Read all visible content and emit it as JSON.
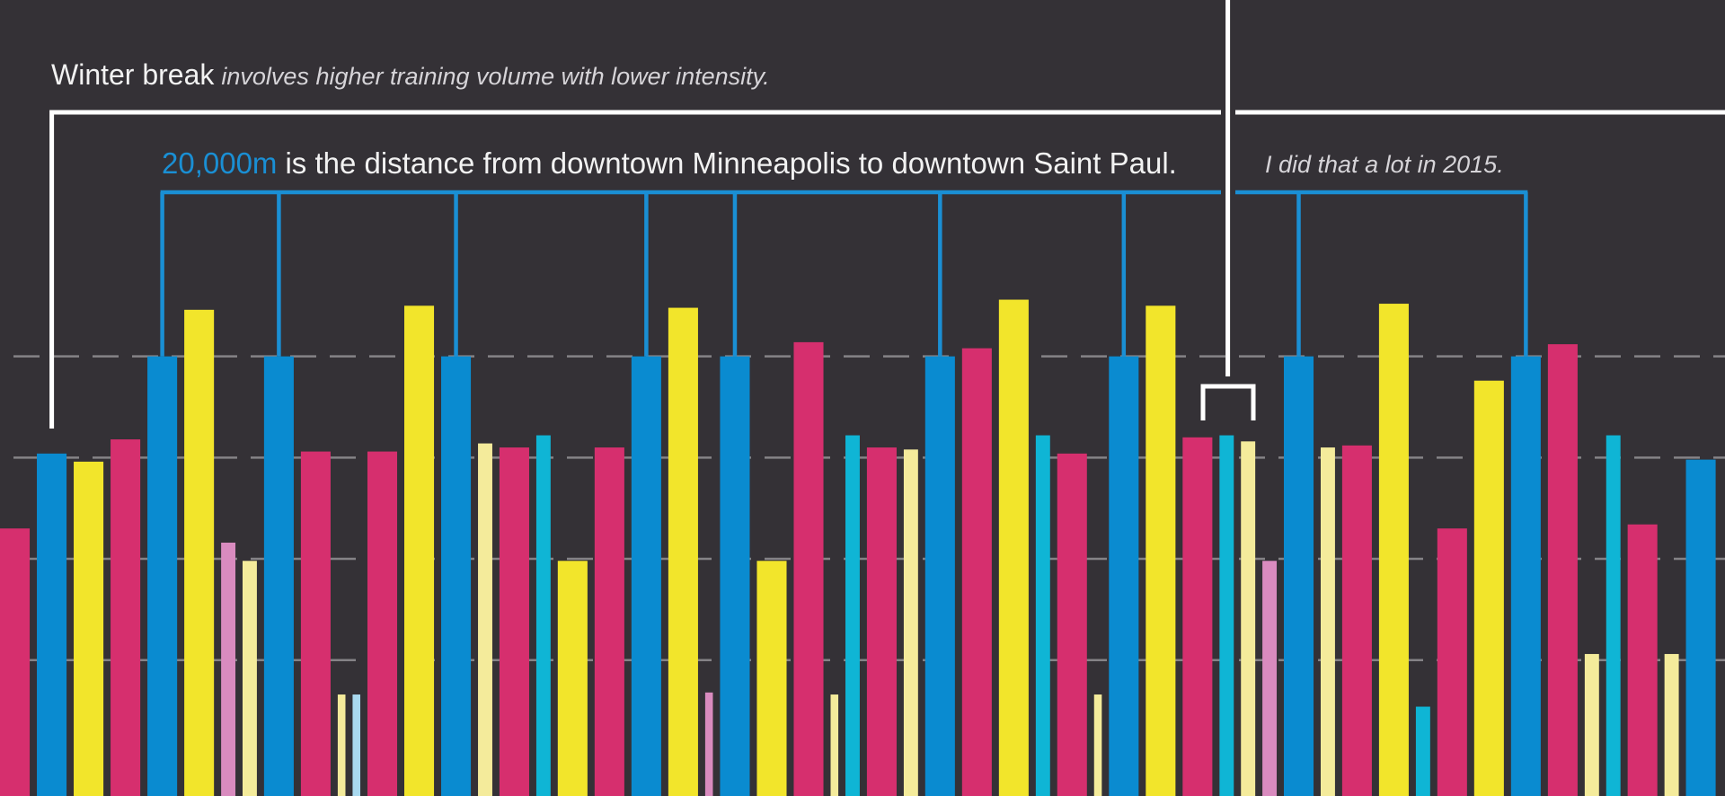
{
  "annotations": {
    "title": "Winter break",
    "title_note": "involves higher training volume with lower intensity.",
    "distance_value": "20,000m",
    "distance_text": "is the distance from downtown Minneapolis to downtown Saint Paul.",
    "side_note": "I did that a lot in 2015."
  },
  "chart_data": {
    "type": "bar",
    "categories": [
      null,
      null,
      null,
      null,
      null,
      null,
      null,
      null,
      null,
      null,
      null,
      null,
      null,
      null,
      null,
      null,
      null,
      null,
      null,
      null,
      null,
      null,
      null,
      null,
      null,
      null,
      null,
      null,
      null,
      null,
      null,
      null,
      null,
      null,
      null,
      null,
      null,
      null,
      null,
      null,
      null,
      null,
      null,
      null,
      null,
      null,
      null,
      null,
      null,
      null,
      null,
      null,
      null,
      null,
      null,
      null
    ],
    "values": [
      11500,
      15200,
      14800,
      15900,
      20000,
      22300,
      10800,
      9900,
      20000,
      15300,
      3300,
      3300,
      15300,
      22500,
      20000,
      15700,
      15500,
      16100,
      9900,
      15500,
      20000,
      22400,
      3400,
      20000,
      9900,
      20700,
      3300,
      16100,
      15500,
      15400,
      20000,
      20400,
      22800,
      16100,
      15200,
      3300,
      20000,
      22500,
      16000,
      16100,
      15800,
      9900,
      20000,
      15500,
      15600,
      22600,
      2700,
      11500,
      18800,
      20000,
      20600,
      5300,
      16100,
      11700,
      5300,
      14900
    ],
    "colors": [
      "#d62f6e",
      "#0a8bd0",
      "#f2e52b",
      "#d62f6e",
      "#0a8bd0",
      "#f2e52b",
      "#d98bbf",
      "#f4eb9b",
      "#0a8bd0",
      "#d62f6e",
      "#f4eb9b",
      "#a9d9ef",
      "#d62f6e",
      "#f2e52b",
      "#0a8bd0",
      "#f4eb9b",
      "#d62f6e",
      "#0fb5d5",
      "#f2e52b",
      "#d62f6e",
      "#0a8bd0",
      "#f2e52b",
      "#d98bbf",
      "#0a8bd0",
      "#f2e52b",
      "#d62f6e",
      "#f4eb9b",
      "#0fb5d5",
      "#d62f6e",
      "#f4eb9b",
      "#0a8bd0",
      "#d62f6e",
      "#f2e52b",
      "#0fb5d5",
      "#d62f6e",
      "#f4eb9b",
      "#0a8bd0",
      "#f2e52b",
      "#d62f6e",
      "#0fb5d5",
      "#f4eb9b",
      "#d98bbf",
      "#0a8bd0",
      "#f4eb9b",
      "#d62f6e",
      "#f2e52b",
      "#0fb5d5",
      "#d62f6e",
      "#f2e52b",
      "#0a8bd0",
      "#d62f6e",
      "#f4eb9b",
      "#0fb5d5",
      "#d62f6e",
      "#f4eb9b",
      "#0a8bd0"
    ],
    "ylim": [
      0,
      37600
    ],
    "yticks": [
      5000,
      10000,
      15000,
      20000
    ],
    "grid": true
  }
}
